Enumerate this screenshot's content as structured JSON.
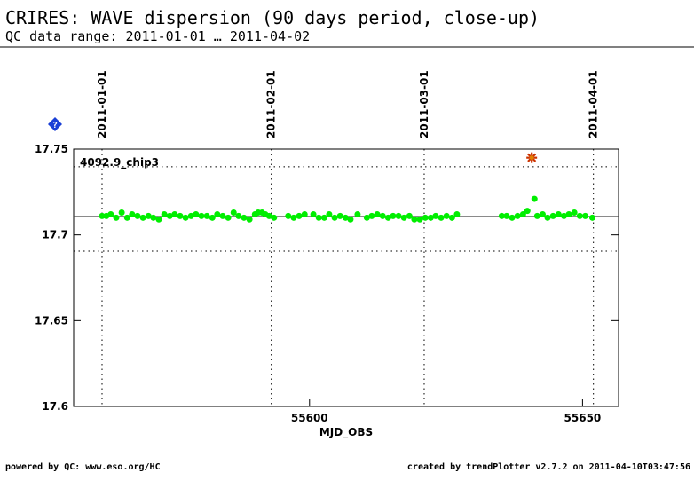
{
  "chart_data": {
    "type": "scatter",
    "title": "CRIRES: WAVE dispersion (90 days period, close-up)",
    "subtitle": "QC data range: 2011-01-01 … 2011-04-02",
    "xlabel": "MJD_OBS",
    "footer_left": "powered by QC: www.eso.org/HC",
    "footer_right": "created by trendPlotter v2.7.2 on 2011-04-10T03:47:56",
    "xlim": [
      55556.8,
      55656.6
    ],
    "ylim": [
      17.6,
      17.75
    ],
    "xticks": [
      55600,
      55650
    ],
    "yticks": [
      17.6,
      17.65,
      17.7,
      17.75
    ],
    "date_ticks": [
      {
        "value": 55562,
        "label": "2011-01-01"
      },
      {
        "value": 55593,
        "label": "2011-02-01"
      },
      {
        "value": 55621,
        "label": "2011-03-01"
      },
      {
        "value": 55652,
        "label": "2011-04-01"
      }
    ],
    "ref_line": 17.7107,
    "thresholds": [
      17.7397,
      17.6905
    ],
    "series": [
      {
        "name": "4092.9_chip3",
        "color": "#00ee00",
        "marker": "circle",
        "x": [
          55562.0,
          55562.8,
          55563.6,
          55564.6,
          55565.6,
          55566.6,
          55567.5,
          55568.5,
          55569.5,
          55570.5,
          55571.4,
          55572.4,
          55573.4,
          55574.4,
          55575.3,
          55576.3,
          55577.3,
          55578.3,
          55579.2,
          55580.2,
          55581.2,
          55582.2,
          55583.1,
          55584.1,
          55585.1,
          55586.1,
          55587.0,
          55588.0,
          55589.0,
          55590.0,
          55590.6,
          55591.3,
          55591.9,
          55592.6,
          55593.5,
          55596.1,
          55597.1,
          55598.1,
          55599.1,
          55600.7,
          55601.7,
          55602.7,
          55603.6,
          55604.6,
          55605.6,
          55606.6,
          55607.5,
          55608.8,
          55610.5,
          55611.4,
          55612.4,
          55613.4,
          55614.4,
          55615.3,
          55616.3,
          55617.3,
          55618.3,
          55619.2,
          55620.2,
          55621.2,
          55622.2,
          55623.1,
          55624.1,
          55625.1,
          55626.1,
          55627.0,
          55635.2,
          55636.1,
          55637.1,
          55638.1,
          55639.1,
          55639.9,
          55641.2,
          55641.7,
          55642.7,
          55643.6,
          55644.6,
          55645.6,
          55646.6,
          55647.5,
          55648.5,
          55649.5,
          55650.5,
          55651.8
        ],
        "values": [
          17.711,
          17.711,
          17.712,
          17.71,
          17.713,
          17.71,
          17.712,
          17.711,
          17.71,
          17.711,
          17.71,
          17.709,
          17.712,
          17.711,
          17.712,
          17.711,
          17.71,
          17.711,
          17.712,
          17.711,
          17.711,
          17.71,
          17.712,
          17.711,
          17.71,
          17.713,
          17.711,
          17.71,
          17.709,
          17.712,
          17.713,
          17.713,
          17.712,
          17.711,
          17.71,
          17.711,
          17.71,
          17.711,
          17.712,
          17.712,
          17.71,
          17.71,
          17.712,
          17.71,
          17.711,
          17.71,
          17.709,
          17.712,
          17.71,
          17.711,
          17.712,
          17.711,
          17.71,
          17.711,
          17.711,
          17.71,
          17.711,
          17.709,
          17.709,
          17.71,
          17.71,
          17.711,
          17.71,
          17.711,
          17.71,
          17.712,
          17.711,
          17.711,
          17.71,
          17.711,
          17.712,
          17.714,
          17.721,
          17.711,
          17.712,
          17.71,
          17.711,
          17.712,
          17.711,
          17.712,
          17.713,
          17.711,
          17.711,
          17.71
        ]
      },
      {
        "name": "outlier",
        "color": "#cc3300",
        "marker": "star",
        "x": [
          55640.7
        ],
        "values": [
          17.745
        ]
      }
    ]
  }
}
